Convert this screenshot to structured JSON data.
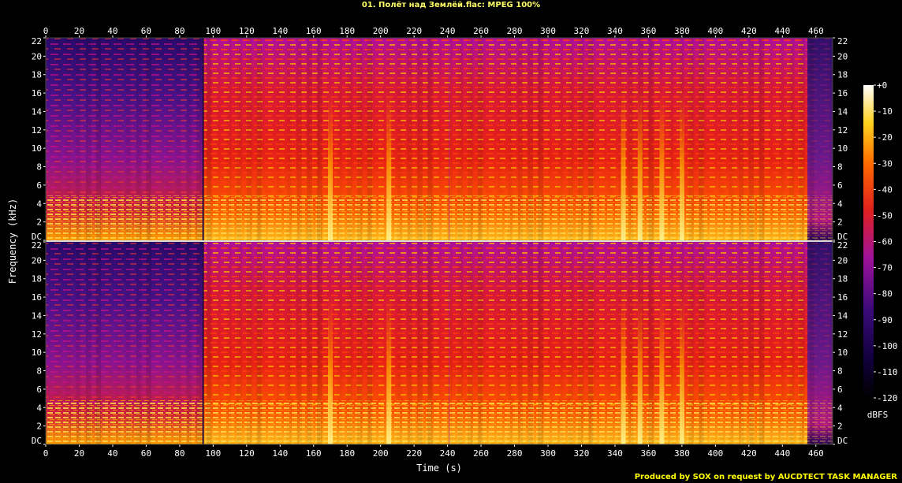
{
  "window": {
    "title": "01. Полёт над Землёй.flac: MPEG 100%"
  },
  "footer": {
    "producer": "Produced by SOX on request by AUCDTECT TASK MANAGER"
  },
  "colors": {
    "background": "#000000",
    "axis": "#ffffff",
    "title": "#ffff66",
    "producer": "#ffff00",
    "divider": "#ffffff"
  },
  "chart_data": {
    "type": "heatmap",
    "title": "01. Полёт над Землёй.flac: MPEG 100%",
    "xlabel": "Time (s)",
    "ylabel": "Frequency (kHz)",
    "xlim": [
      0,
      470
    ],
    "ylim": [
      0,
      22
    ],
    "x_ticks": [
      "0",
      "20",
      "40",
      "60",
      "80",
      "100",
      "120",
      "140",
      "160",
      "180",
      "200",
      "220",
      "240",
      "260",
      "280",
      "300",
      "320",
      "340",
      "360",
      "380",
      "400",
      "420",
      "440",
      "460"
    ],
    "x_tick_values": [
      0,
      20,
      40,
      60,
      80,
      100,
      120,
      140,
      160,
      180,
      200,
      220,
      240,
      260,
      280,
      300,
      320,
      340,
      360,
      380,
      400,
      420,
      440,
      460
    ],
    "y_ticks": [
      "DC",
      "2",
      "4",
      "6",
      "8",
      "10",
      "12",
      "14",
      "16",
      "18",
      "20",
      "22"
    ],
    "y_tick_values": [
      0,
      2,
      4,
      6,
      8,
      10,
      12,
      14,
      16,
      18,
      20,
      22
    ],
    "channels": [
      "left",
      "right"
    ],
    "colorbar": {
      "label": "dBFS",
      "ticks": [
        "+0",
        "-10",
        "-20",
        "-30",
        "-40",
        "-50",
        "-60",
        "-70",
        "-80",
        "-90",
        "-100",
        "-110",
        "-120"
      ],
      "range": [
        -120,
        0
      ]
    },
    "regions": [
      {
        "t_start": 0,
        "t_end": 94,
        "intensity": "low",
        "dbfs_upper_band": -95,
        "dbfs_low_band": -30
      },
      {
        "t_start": 94,
        "t_end": 455,
        "intensity": "high",
        "dbfs_upper_band": -55,
        "dbfs_low_band": -10
      },
      {
        "t_start": 455,
        "t_end": 470,
        "intensity": "fade",
        "dbfs_upper_band": -100,
        "dbfs_low_band": -60
      }
    ],
    "bright_events_s": [
      170,
      205,
      345,
      355,
      368,
      380
    ]
  }
}
